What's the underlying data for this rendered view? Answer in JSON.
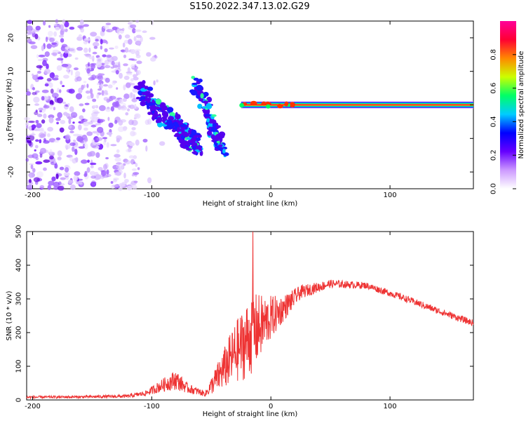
{
  "figure": {
    "title": "S150.2022.347.13.02.G29"
  },
  "chart_data": [
    {
      "type": "heatmap",
      "xlabel": "Height of straight line (km)",
      "ylabel": "Frequency (Hz)",
      "xlim": [
        -205,
        170
      ],
      "ylim": [
        -25,
        25
      ],
      "xticks": [
        -200,
        -100,
        0,
        100
      ],
      "yticks": [
        -20,
        -10,
        0,
        10,
        20
      ],
      "colorbar": {
        "label": "Normalized spectral amplitude",
        "range": [
          0,
          1
        ],
        "ticks": [
          0.0,
          0.2,
          0.4,
          0.6,
          0.8
        ],
        "colors": [
          "#ffffff",
          "#cc99ff",
          "#6600ff",
          "#0000ff",
          "#00ccff",
          "#00ff66",
          "#ccff00",
          "#ff8800",
          "#ff0033",
          "#ff0099"
        ]
      },
      "features": {
        "noise_region_x": [
          -205,
          -110
        ],
        "diffuse_streak": [
          [
            -110,
            5
          ],
          [
            -95,
            -2
          ],
          [
            -80,
            -5
          ],
          [
            -70,
            -10
          ],
          [
            -60,
            -12
          ]
        ],
        "second_streak": [
          [
            -65,
            7
          ],
          [
            -55,
            0
          ],
          [
            -50,
            -5
          ],
          [
            -45,
            -10
          ],
          [
            -40,
            -13
          ]
        ],
        "carrier_line_x": [
          -25,
          170
        ],
        "carrier_line_freq": 0
      },
      "grid": false
    },
    {
      "type": "line",
      "xlabel": "Height of straight line (km)",
      "ylabel": "SNR (10 * v/v)",
      "xlim": [
        -205,
        170
      ],
      "ylim": [
        0,
        500
      ],
      "xticks": [
        -200,
        -100,
        0,
        100
      ],
      "yticks": [
        0,
        100,
        200,
        300,
        400,
        500
      ],
      "color": "#ee3333",
      "grid": false,
      "envelope": [
        {
          "x": -205,
          "mean": 8,
          "noise": 4
        },
        {
          "x": -160,
          "mean": 9,
          "noise": 4
        },
        {
          "x": -120,
          "mean": 11,
          "noise": 5
        },
        {
          "x": -105,
          "mean": 20,
          "noise": 8
        },
        {
          "x": -90,
          "mean": 45,
          "noise": 20
        },
        {
          "x": -80,
          "mean": 60,
          "noise": 30
        },
        {
          "x": -70,
          "mean": 35,
          "noise": 15
        },
        {
          "x": -55,
          "mean": 18,
          "noise": 8
        },
        {
          "x": -40,
          "mean": 90,
          "noise": 60
        },
        {
          "x": -30,
          "mean": 140,
          "noise": 90
        },
        {
          "x": -22,
          "mean": 170,
          "noise": 110
        },
        {
          "x": -15,
          "mean": 200,
          "noise": 120
        },
        {
          "x": -5,
          "mean": 230,
          "noise": 80
        },
        {
          "x": 10,
          "mean": 270,
          "noise": 40
        },
        {
          "x": 25,
          "mean": 320,
          "noise": 20
        },
        {
          "x": 50,
          "mean": 345,
          "noise": 12
        },
        {
          "x": 80,
          "mean": 340,
          "noise": 10
        },
        {
          "x": 110,
          "mean": 305,
          "noise": 10
        },
        {
          "x": 140,
          "mean": 265,
          "noise": 10
        },
        {
          "x": 170,
          "mean": 228,
          "noise": 10
        }
      ],
      "spike": {
        "x": -15,
        "y": 500
      }
    }
  ]
}
